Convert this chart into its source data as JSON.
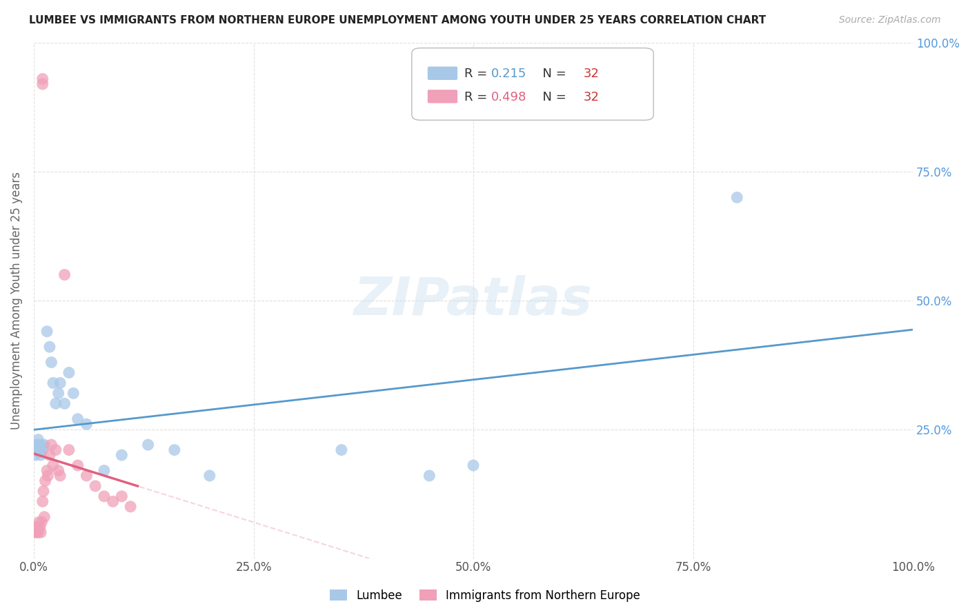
{
  "title": "LUMBEE VS IMMIGRANTS FROM NORTHERN EUROPE UNEMPLOYMENT AMONG YOUTH UNDER 25 YEARS CORRELATION CHART",
  "source": "Source: ZipAtlas.com",
  "ylabel": "Unemployment Among Youth under 25 years",
  "watermark": "ZIPatlas",
  "lumbee_R": 0.215,
  "lumbee_N": 32,
  "immigrant_R": 0.498,
  "immigrant_N": 32,
  "lumbee_color": "#a8c8e8",
  "immigrant_color": "#f0a0b8",
  "lumbee_line_color": "#5599cc",
  "immigrant_line_color": "#e06080",
  "immigrant_dashed_color": "#f0b8c8",
  "lumbee_x": [
    0.001,
    0.002,
    0.003,
    0.004,
    0.005,
    0.006,
    0.007,
    0.008,
    0.009,
    0.01,
    0.012,
    0.015,
    0.018,
    0.02,
    0.022,
    0.025,
    0.028,
    0.03,
    0.035,
    0.04,
    0.045,
    0.05,
    0.06,
    0.08,
    0.1,
    0.13,
    0.16,
    0.2,
    0.35,
    0.45,
    0.5,
    0.8
  ],
  "lumbee_y": [
    0.21,
    0.2,
    0.22,
    0.21,
    0.23,
    0.22,
    0.21,
    0.2,
    0.22,
    0.21,
    0.22,
    0.44,
    0.41,
    0.38,
    0.34,
    0.3,
    0.32,
    0.34,
    0.3,
    0.36,
    0.32,
    0.27,
    0.26,
    0.17,
    0.2,
    0.22,
    0.21,
    0.16,
    0.21,
    0.16,
    0.18,
    0.7
  ],
  "immigrant_x": [
    0.001,
    0.002,
    0.003,
    0.004,
    0.005,
    0.006,
    0.007,
    0.008,
    0.009,
    0.01,
    0.011,
    0.012,
    0.013,
    0.015,
    0.016,
    0.018,
    0.02,
    0.022,
    0.025,
    0.028,
    0.03,
    0.035,
    0.04,
    0.05,
    0.06,
    0.07,
    0.08,
    0.09,
    0.1,
    0.11,
    0.01,
    0.01
  ],
  "immigrant_y": [
    0.05,
    0.06,
    0.05,
    0.06,
    0.05,
    0.07,
    0.06,
    0.05,
    0.07,
    0.11,
    0.13,
    0.08,
    0.15,
    0.17,
    0.16,
    0.2,
    0.22,
    0.18,
    0.21,
    0.17,
    0.16,
    0.55,
    0.21,
    0.18,
    0.16,
    0.14,
    0.12,
    0.11,
    0.12,
    0.1,
    0.93,
    0.92
  ],
  "xlim": [
    0.0,
    1.0
  ],
  "ylim": [
    0.0,
    1.0
  ],
  "xticks": [
    0.0,
    0.25,
    0.5,
    0.75,
    1.0
  ],
  "yticks": [
    0.0,
    0.25,
    0.5,
    0.75,
    1.0
  ],
  "xticklabels": [
    "0.0%",
    "25.0%",
    "50.0%",
    "75.0%",
    "100.0%"
  ],
  "left_yticklabels": [
    "",
    "",
    "",
    "",
    ""
  ],
  "right_yticklabels": [
    "",
    "25.0%",
    "50.0%",
    "75.0%",
    "100.0%"
  ],
  "background_color": "#ffffff",
  "grid_color": "#dddddd",
  "legend_R_color": "#5599cc",
  "legend_N_color": "#cc3333",
  "legend_R2_color": "#e06080",
  "bottom_legend_labels": [
    "Lumbee",
    "Immigrants from Northern Europe"
  ]
}
